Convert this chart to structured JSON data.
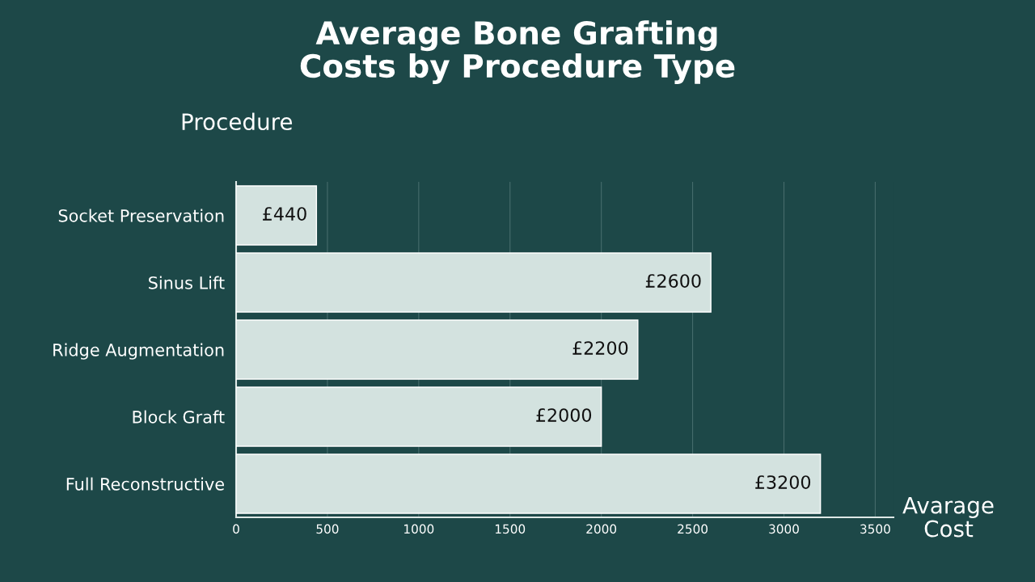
{
  "chart_data": {
    "type": "bar",
    "orientation": "horizontal",
    "title": "Average Bone Grafting\nCosts by Procedure Type",
    "xlabel": "Avarage\nCost",
    "ylabel": "Procedure",
    "categories": [
      "Socket Preservation",
      "Sinus Lift",
      "Ridge Augmentation",
      "Block Graft",
      "Full Reconstructive"
    ],
    "values": [
      440,
      2600,
      2200,
      2000,
      3200
    ],
    "value_labels": [
      "£440",
      "£2600",
      "£2200",
      "£2000",
      "£3200"
    ],
    "color": "#d3e2df",
    "xlim": [
      0,
      3600
    ],
    "xticks": [
      0,
      500,
      1000,
      1500,
      2000,
      2500,
      3000,
      3500
    ],
    "grid": "x"
  }
}
